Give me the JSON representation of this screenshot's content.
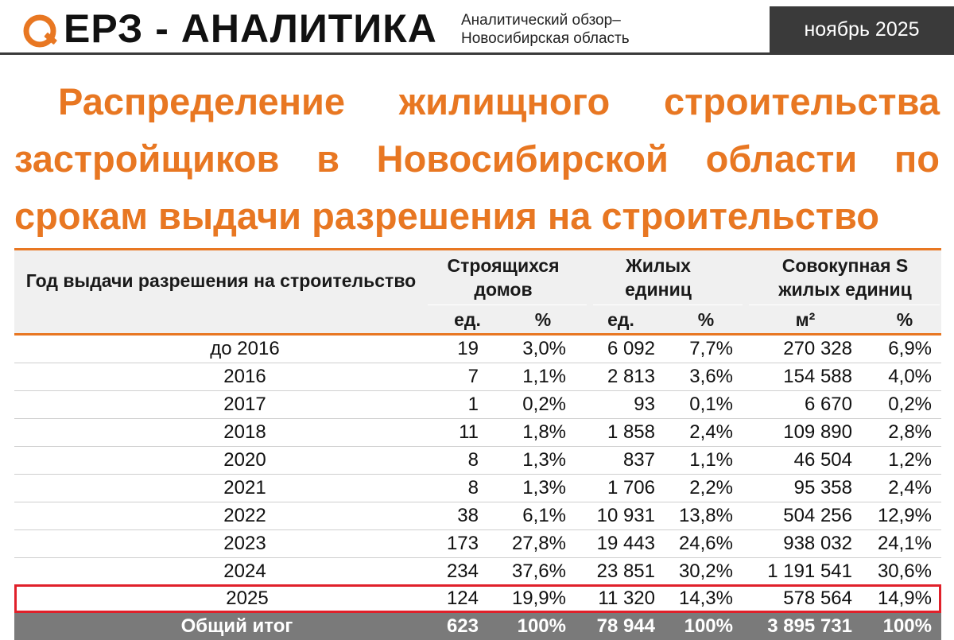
{
  "header": {
    "brand": "ЕРЗ - АНАЛИТИКА",
    "subtitle_line1": "Аналитический обзор–",
    "subtitle_line2": "Новосибирская область",
    "date": "ноябрь 2025",
    "logo_icon": "q-logo-icon",
    "accent_color": "#e87722"
  },
  "title": {
    "line1": [
      "Распределение",
      "жилищного",
      "строительства"
    ],
    "line2": [
      "застройщиков",
      "в",
      "Новосибирской",
      "области",
      "по"
    ],
    "line3": "срокам выдачи разрешения на строительство"
  },
  "table": {
    "year_header": "Год выдачи разрешения на строительство",
    "groups": [
      {
        "line1": "Строящихся",
        "line2": "домов"
      },
      {
        "line1": "Жилых",
        "line2": "единиц"
      },
      {
        "line1": "Совокупная S",
        "line2": "жилых единиц"
      }
    ],
    "sub_headers": [
      "ед.",
      "%",
      "ед.",
      "%",
      "м²",
      "%"
    ],
    "rows": [
      {
        "year": "до 2016",
        "houses": "19",
        "houses_pct": "3,0%",
        "units": "6 092",
        "units_pct": "7,7%",
        "area": "270 328",
        "area_pct": "6,9%",
        "highlight": false
      },
      {
        "year": "2016",
        "houses": "7",
        "houses_pct": "1,1%",
        "units": "2 813",
        "units_pct": "3,6%",
        "area": "154 588",
        "area_pct": "4,0%",
        "highlight": false
      },
      {
        "year": "2017",
        "houses": "1",
        "houses_pct": "0,2%",
        "units": "93",
        "units_pct": "0,1%",
        "area": "6 670",
        "area_pct": "0,2%",
        "highlight": false
      },
      {
        "year": "2018",
        "houses": "11",
        "houses_pct": "1,8%",
        "units": "1 858",
        "units_pct": "2,4%",
        "area": "109 890",
        "area_pct": "2,8%",
        "highlight": false
      },
      {
        "year": "2020",
        "houses": "8",
        "houses_pct": "1,3%",
        "units": "837",
        "units_pct": "1,1%",
        "area": "46 504",
        "area_pct": "1,2%",
        "highlight": false
      },
      {
        "year": "2021",
        "houses": "8",
        "houses_pct": "1,3%",
        "units": "1 706",
        "units_pct": "2,2%",
        "area": "95 358",
        "area_pct": "2,4%",
        "highlight": false
      },
      {
        "year": "2022",
        "houses": "38",
        "houses_pct": "6,1%",
        "units": "10 931",
        "units_pct": "13,8%",
        "area": "504 256",
        "area_pct": "12,9%",
        "highlight": false
      },
      {
        "year": "2023",
        "houses": "173",
        "houses_pct": "27,8%",
        "units": "19 443",
        "units_pct": "24,6%",
        "area": "938 032",
        "area_pct": "24,1%",
        "highlight": false
      },
      {
        "year": "2024",
        "houses": "234",
        "houses_pct": "37,6%",
        "units": "23 851",
        "units_pct": "30,2%",
        "area": "1 191 541",
        "area_pct": "30,6%",
        "highlight": false
      },
      {
        "year": "2025",
        "houses": "124",
        "houses_pct": "19,9%",
        "units": "11 320",
        "units_pct": "14,3%",
        "area": "578 564",
        "area_pct": "14,9%",
        "highlight": true
      }
    ],
    "total": {
      "year": "Общий итог",
      "houses": "623",
      "houses_pct": "100%",
      "units": "78 944",
      "units_pct": "100%",
      "area": "3 895 731",
      "area_pct": "100%"
    },
    "highlight_color": "#e0202a"
  }
}
